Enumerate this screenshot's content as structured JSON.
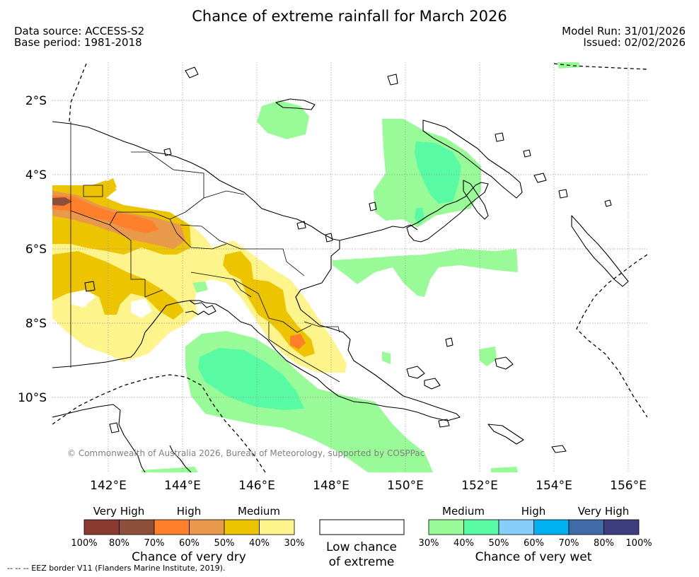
{
  "title": "Chance of extreme rainfall for March 2026",
  "meta": {
    "data_source": "Data source: ACCESS-S2",
    "base_period": "Base period: 1981-2018",
    "model_run": "Model Run: 31/01/2026",
    "issued": "Issued: 02/02/2026"
  },
  "map": {
    "lat_labels": [
      "2°S",
      "4°S",
      "6°S",
      "8°S",
      "10°S"
    ],
    "lon_labels": [
      "142°E",
      "144°E",
      "146°E",
      "148°E",
      "150°E",
      "152°E",
      "154°E",
      "156°E"
    ],
    "copyright": "© Commonwealth of Australia 2026, Bureau of Meteorology, supported by COSPPac"
  },
  "legend": {
    "dry": {
      "levels": [
        "Very High",
        "High",
        "Medium"
      ],
      "colors": [
        "#8b3a2f",
        "#8b4f3a",
        "#ff7f2a",
        "#e9994a",
        "#ecc400",
        "#fdf48c"
      ],
      "ticks": [
        "100%",
        "80%",
        "70%",
        "60%",
        "50%",
        "40%",
        "30%"
      ],
      "caption": "Chance of very dry"
    },
    "none": {
      "caption_line1": "Low chance",
      "caption_line2": "of extreme"
    },
    "wet": {
      "levels": [
        "Medium",
        "High",
        "Very High"
      ],
      "colors": [
        "#98fb98",
        "#58fba4",
        "#87cefa",
        "#00b0f0",
        "#3f6ba8",
        "#3e3e7c"
      ],
      "ticks": [
        "30%",
        "40%",
        "50%",
        "60%",
        "70%",
        "80%",
        "100%"
      ],
      "caption": "Chance of very wet"
    }
  },
  "eez_note": "-- -- -- EEZ border V11 (Flanders Marine Institute, 2019)."
}
